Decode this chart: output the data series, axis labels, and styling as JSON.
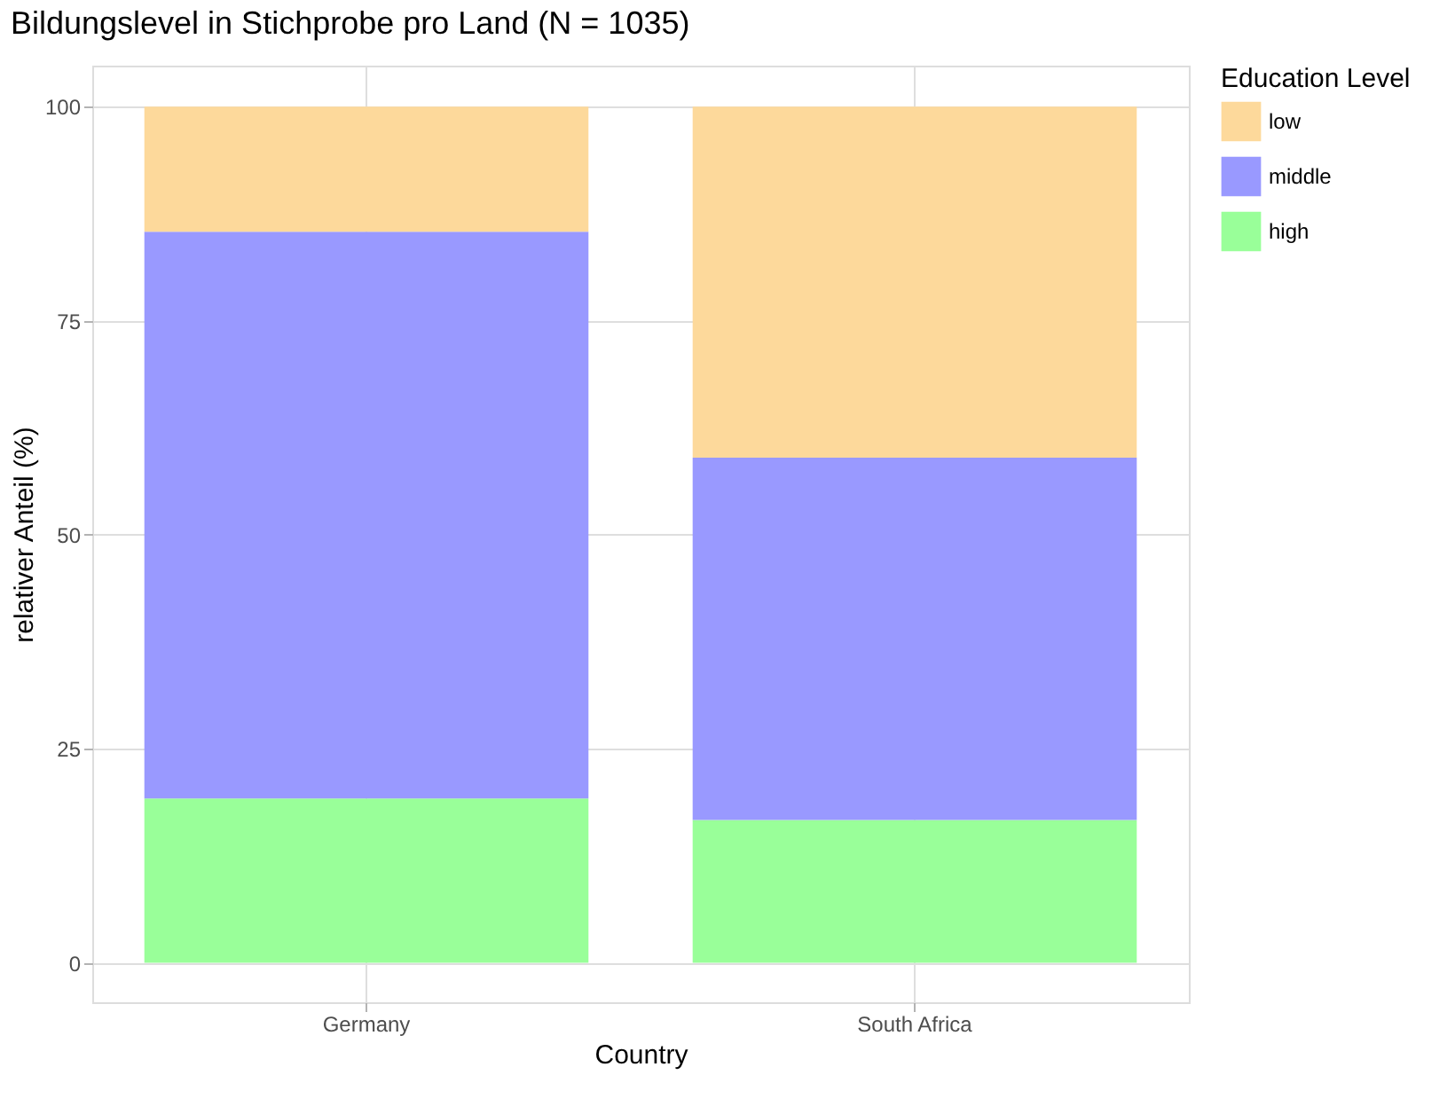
{
  "chart_data": {
    "type": "bar",
    "stacked": true,
    "title": "Bildungslevel in Stichprobe pro Land (N = 1035)",
    "xlabel": "Country",
    "ylabel": "relativer Anteil (%)",
    "legend_title": "Education Level",
    "legend": "right",
    "categories": [
      "Germany",
      "South Africa"
    ],
    "series": [
      {
        "name": "high",
        "color": "#99ff99",
        "values": [
          19.2,
          16.7
        ]
      },
      {
        "name": "middle",
        "color": "#9999ff",
        "values": [
          66.2,
          42.3
        ]
      },
      {
        "name": "low",
        "color": "#fdd99b",
        "values": [
          14.6,
          41.0
        ]
      }
    ],
    "ylim": [
      -4.6,
      104.8
    ],
    "yticks": [
      0,
      25,
      50,
      75,
      100
    ],
    "grid": true
  }
}
